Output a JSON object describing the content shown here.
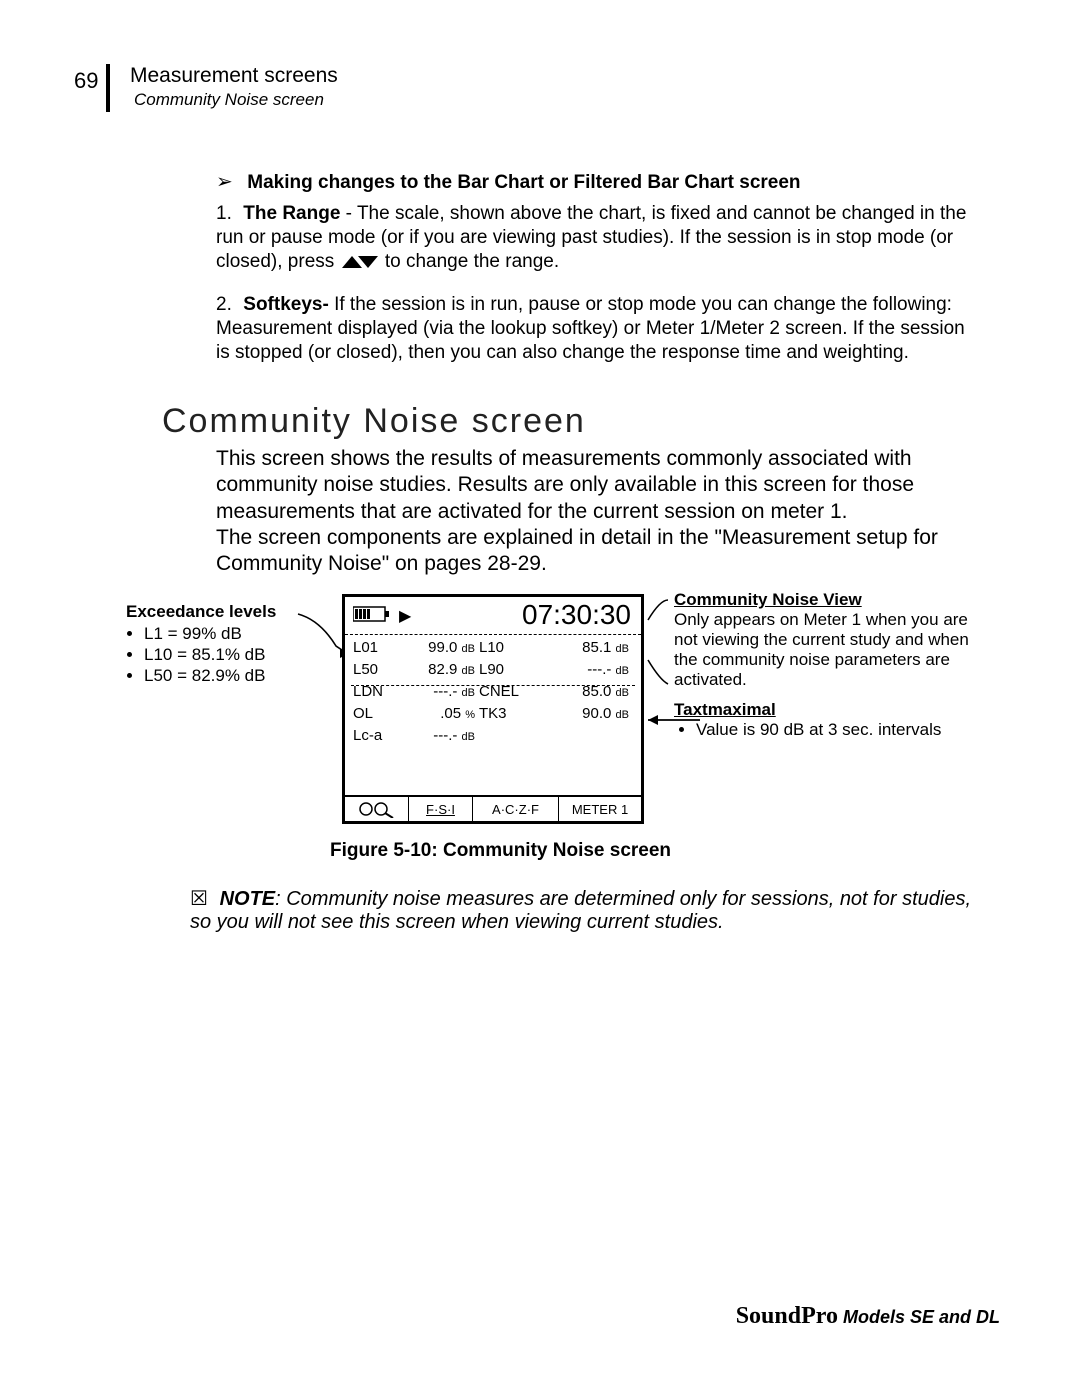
{
  "page_number": "69",
  "header": {
    "title": "Measurement screens",
    "subtitle": "Community Noise screen"
  },
  "making": {
    "heading": "Making  changes to the Bar Chart or Filtered Bar Chart screen",
    "item1_label": "The Range",
    "item1_body": " - The scale, shown above the chart, is fixed and cannot be changed in the run or pause mode (or if you are viewing past studies).  If the session is in stop mode (or closed), press ",
    "item1_tail": " to change the range.",
    "item2_label": "Softkeys-",
    "item2_body": " If the session is in run, pause or stop mode you can change the following:  Measurement displayed (via the lookup softkey) or Meter 1/Meter 2 screen.  If the session is stopped (or closed), then you can also change the response time and weighting."
  },
  "h2": "Community Noise screen",
  "intro": "This screen shows the results of measurements commonly associated with community noise studies. Results are only available in this screen for those measurements that are activated for the current session on meter 1.\nThe screen components are explained in detail in the \"Measurement setup for Community Noise\" on pages 28-29.",
  "exceed": {
    "title": "Exceedance levels",
    "l1": "L1 = 99% dB",
    "l2": "L10 = 85.1% dB",
    "l3": "L50 = 82.9% dB"
  },
  "cnv": {
    "title": "Community Noise View",
    "body": "Only appears on Meter 1 when you are not viewing the current study and when the community noise parameters are activated.",
    "title2": "Taxtmaximal",
    "b1": "Value is 90 dB at 3 sec. intervals"
  },
  "device": {
    "time": "07:30:30",
    "rows": [
      {
        "a": "L01",
        "av": "99.0",
        "au": "dB",
        "b": "L10",
        "bv": "85.1",
        "bu": "dB"
      },
      {
        "a": "L50",
        "av": "82.9",
        "au": "dB",
        "b": "L90",
        "bv": "---.-",
        "bu": "dB"
      },
      {
        "a": "LDN",
        "av": "---.-",
        "au": "dB",
        "b": "CNEL",
        "bv": "85.0",
        "bu": "dB"
      },
      {
        "a": "OL",
        "av": ".05",
        "au": "%",
        "b": "TK3",
        "bv": "90.0",
        "bu": "dB"
      },
      {
        "a": "Lc-a",
        "av": "---.-",
        "au": "dB",
        "b": "",
        "bv": "",
        "bu": ""
      }
    ],
    "sk1": "",
    "sk2": "F·S·I",
    "sk3": "A·C·Z·F",
    "sk4": "METER 1"
  },
  "figure_caption": "Figure 5-10:  Community Noise screen",
  "note": {
    "title": "NOTE",
    "body": ": Community noise measures are determined only for sessions, not for studies, so you will not see this screen when viewing current studies."
  },
  "footer": {
    "brand": "SoundPro",
    "models": "  Models SE and DL"
  }
}
